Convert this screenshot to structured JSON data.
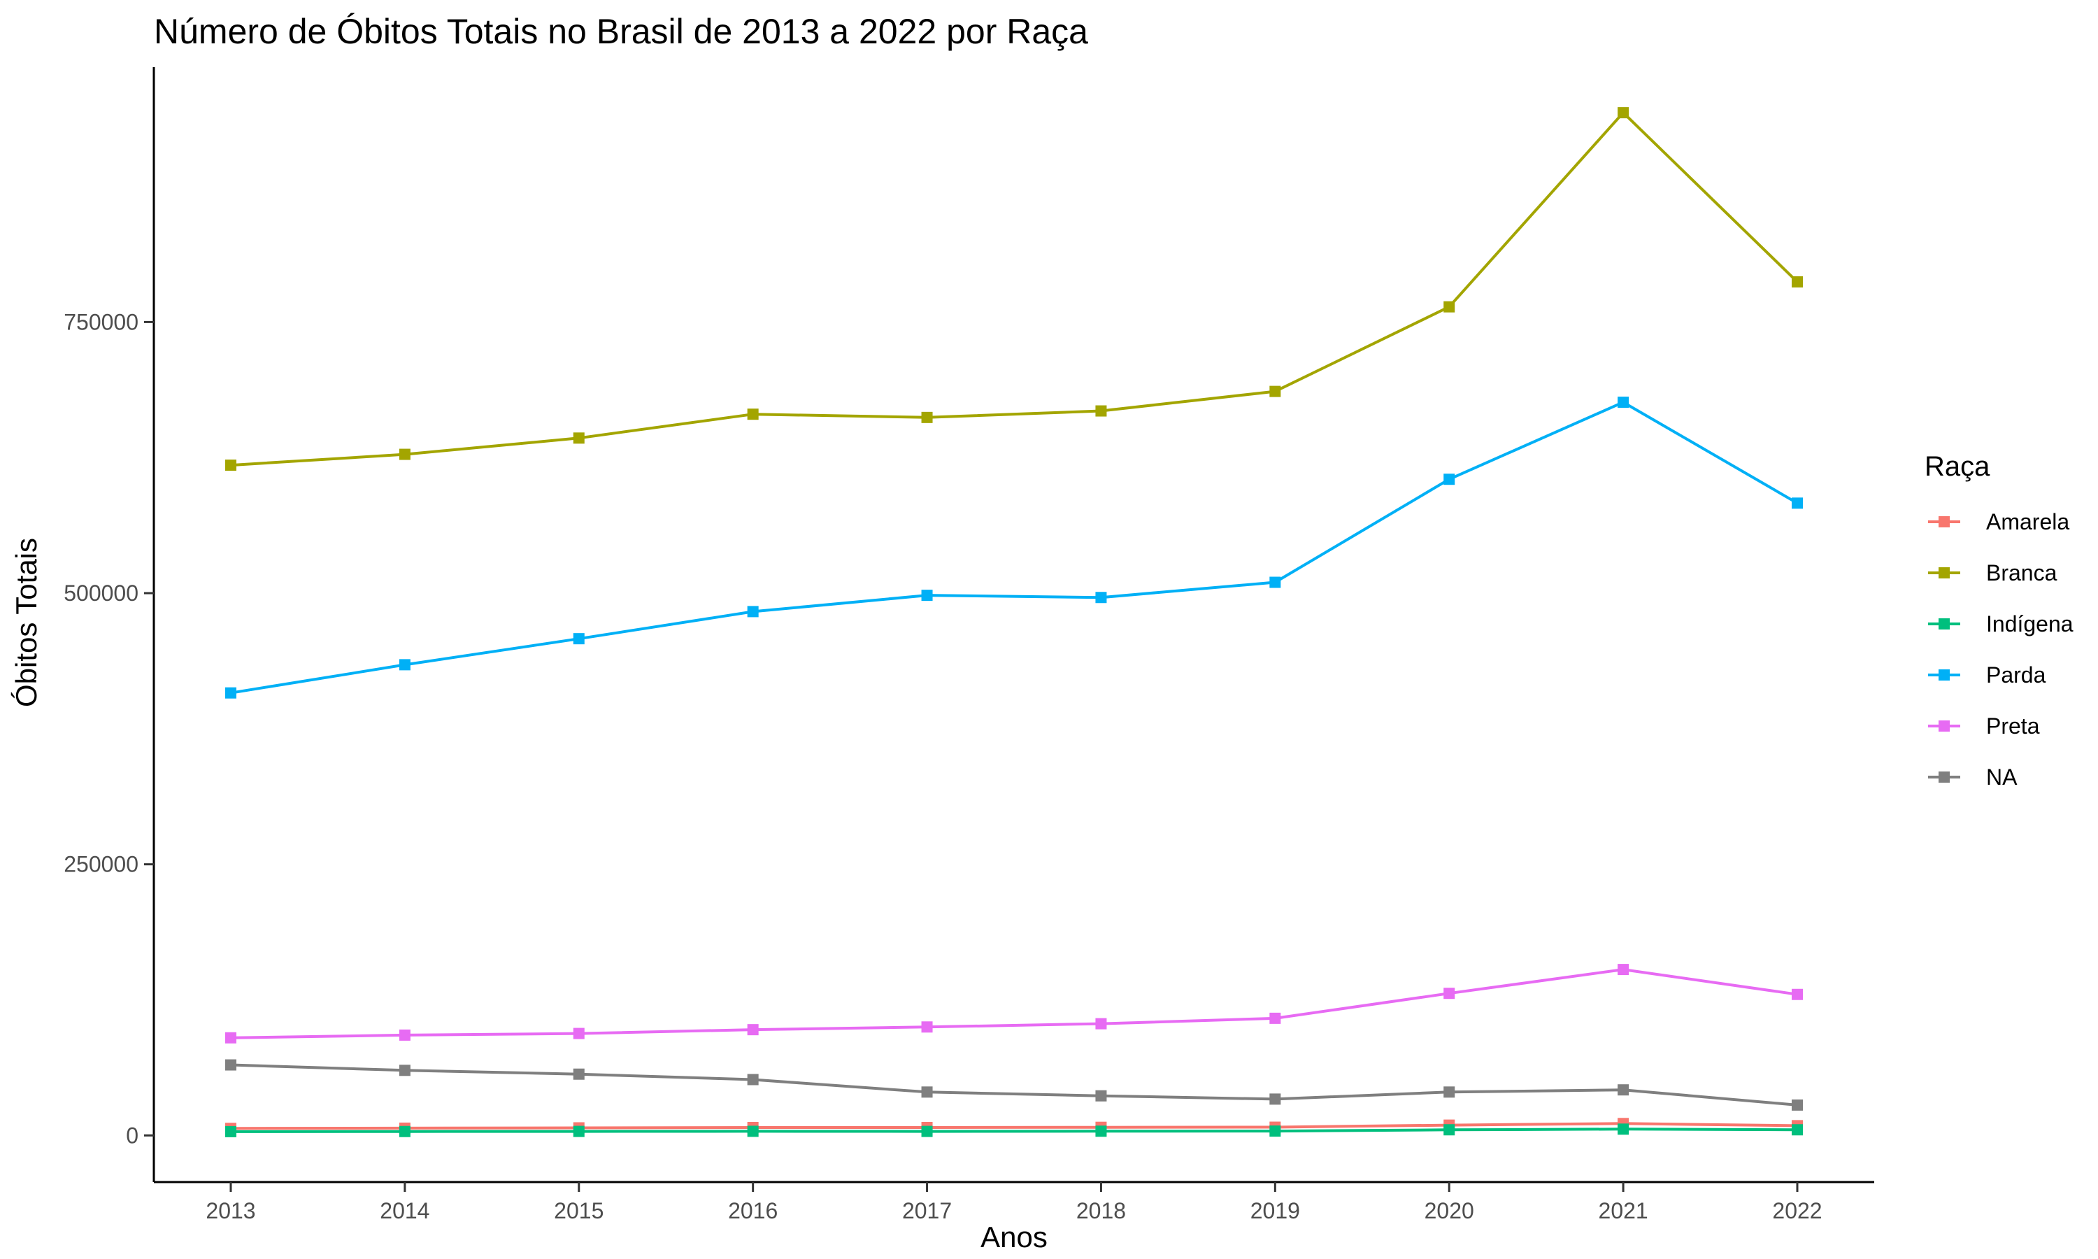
{
  "chart_data": {
    "type": "line",
    "title": "Número de Óbitos Totais no Brasil de 2013 a 2022 por Raça",
    "xlabel": "Anos",
    "ylabel": "Óbitos Totais",
    "x": [
      2013,
      2014,
      2015,
      2016,
      2017,
      2018,
      2019,
      2020,
      2021,
      2022
    ],
    "x_tick_labels": [
      "2013",
      "2014",
      "2015",
      "2016",
      "2017",
      "2018",
      "2019",
      "2020",
      "2021",
      "2022"
    ],
    "y_ticks": [
      0,
      250000,
      500000,
      750000
    ],
    "y_tick_labels": [
      "0",
      "250000",
      "500000",
      "750000"
    ],
    "ylim": [
      -43000,
      985000
    ],
    "grid": false,
    "legend_title": "Raça",
    "legend_position": "right",
    "series": [
      {
        "name": "Amarela",
        "color": "#F8766D",
        "values": [
          6500,
          6700,
          7000,
          7300,
          7300,
          7500,
          7600,
          9500,
          11000,
          9000
        ]
      },
      {
        "name": "Branca",
        "color": "#A3A500",
        "values": [
          618000,
          628000,
          643000,
          665000,
          662000,
          668000,
          686000,
          764000,
          943000,
          787000
        ]
      },
      {
        "name": "Indígena",
        "color": "#00BF7D",
        "values": [
          3500,
          3600,
          3700,
          3800,
          3700,
          3900,
          4000,
          5200,
          5800,
          5200
        ]
      },
      {
        "name": "Parda",
        "color": "#00B0F6",
        "values": [
          408000,
          434000,
          458000,
          483000,
          498000,
          496000,
          510000,
          605000,
          676000,
          583000
        ]
      },
      {
        "name": "Preta",
        "color": "#E76BF3",
        "values": [
          90000,
          92500,
          94000,
          97500,
          100000,
          103000,
          108000,
          131000,
          153000,
          130000
        ]
      },
      {
        "name": "NA",
        "color": "#7F7F7F",
        "values": [
          65000,
          60000,
          56500,
          51500,
          40000,
          36500,
          33500,
          40000,
          42000,
          28000
        ]
      }
    ]
  }
}
